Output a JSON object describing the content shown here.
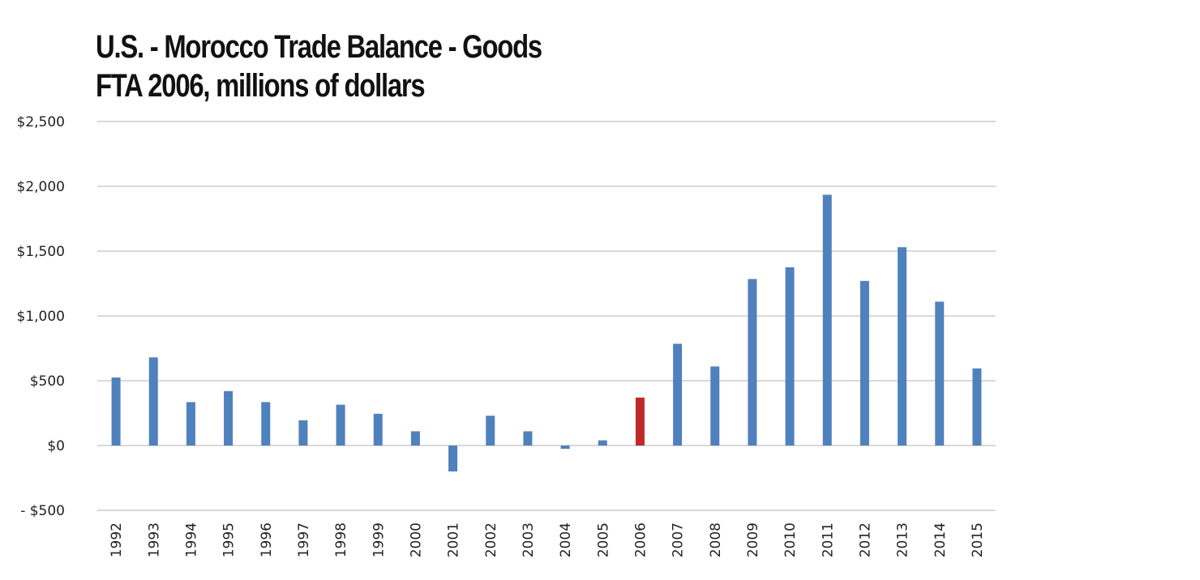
{
  "chart_data": {
    "type": "bar",
    "title_lines": [
      "U.S. - Morocco Trade Balance - Goods",
      "FTA 2006, millions of dollars"
    ],
    "categories": [
      "1992",
      "1993",
      "1994",
      "1995",
      "1996",
      "1997",
      "1998",
      "1999",
      "2000",
      "2001",
      "2002",
      "2003",
      "2004",
      "2005",
      "2006",
      "2007",
      "2008",
      "2009",
      "2010",
      "2011",
      "2012",
      "2013",
      "2014",
      "2015"
    ],
    "values": [
      525,
      680,
      335,
      420,
      335,
      195,
      315,
      245,
      110,
      -200,
      230,
      110,
      -25,
      40,
      370,
      785,
      610,
      1285,
      1375,
      1935,
      1270,
      1530,
      1110,
      595
    ],
    "highlight_category": "2006",
    "ylim": [
      -500,
      2500
    ],
    "yticks": [
      -500,
      0,
      500,
      1000,
      1500,
      2000,
      2500
    ],
    "ytick_labels": [
      "- $500",
      "$0",
      "$500",
      "$1,000",
      "$1,500",
      "$2,000",
      "$2,500"
    ],
    "colors": {
      "bar": "#4f81bd",
      "highlight": "#c0292a",
      "grid": "#d9d9d9",
      "text": "#222222"
    },
    "grid": true,
    "legend": "none",
    "xlabel": "",
    "ylabel": ""
  }
}
